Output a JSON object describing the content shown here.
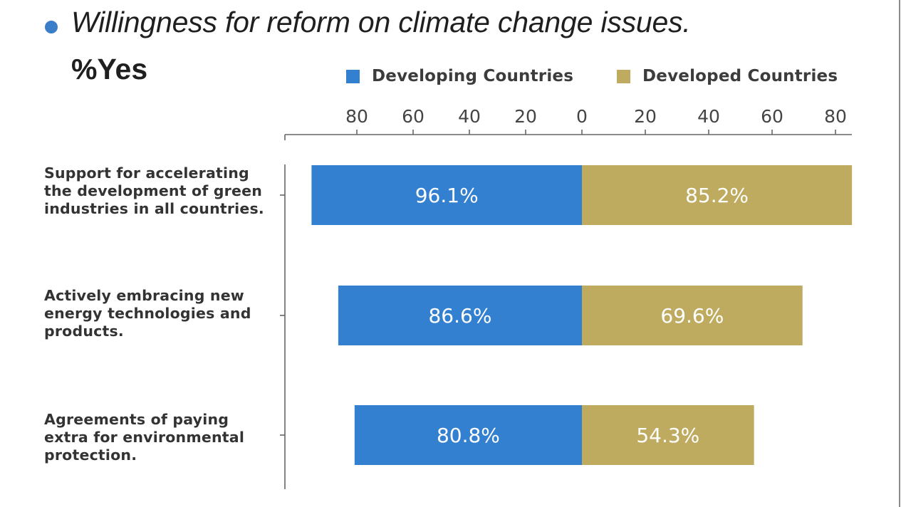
{
  "header": {
    "title": "Willingness for reform on climate change issues.",
    "subtitle": "%Yes"
  },
  "colors": {
    "developing": "#3380d0",
    "developed": "#bfab60",
    "bullet": "#3a7dc9",
    "axis": "#666666"
  },
  "chart_data": {
    "type": "bar",
    "orientation": "horizontal-diverging",
    "title": "Willingness for reform on climate change issues.",
    "subtitle": "%Yes",
    "categories": [
      "Support for accelerating the development of green industries in all countries.",
      "Actively embracing new energy technologies and products.",
      "Agreements of paying extra for environmental protection."
    ],
    "category_lines": [
      [
        "Support for accelerating",
        "the development of green",
        "industries in all countries."
      ],
      [
        "Actively embracing new",
        "energy technologies and",
        "products."
      ],
      [
        "Agreements of paying",
        "extra for environmental",
        "protection."
      ]
    ],
    "series": [
      {
        "name": "Developing Countries",
        "side": "left",
        "values": [
          96.1,
          86.6,
          80.8
        ],
        "labels": [
          "96.1%",
          "86.6%",
          "80.8%"
        ]
      },
      {
        "name": "Developed Countries",
        "side": "right",
        "values": [
          85.2,
          69.6,
          54.3
        ],
        "labels": [
          "85.2%",
          "69.6%",
          "54.3%"
        ]
      }
    ],
    "x_ticks_left": [
      "80",
      "60",
      "40",
      "20",
      "0"
    ],
    "x_ticks_right": [
      "20",
      "40",
      "60",
      "80"
    ],
    "xlabel": "",
    "ylabel": "",
    "legend": {
      "placement": "top",
      "entries": [
        "Developing Countries",
        "Developed Countries"
      ]
    },
    "grid": false
  }
}
